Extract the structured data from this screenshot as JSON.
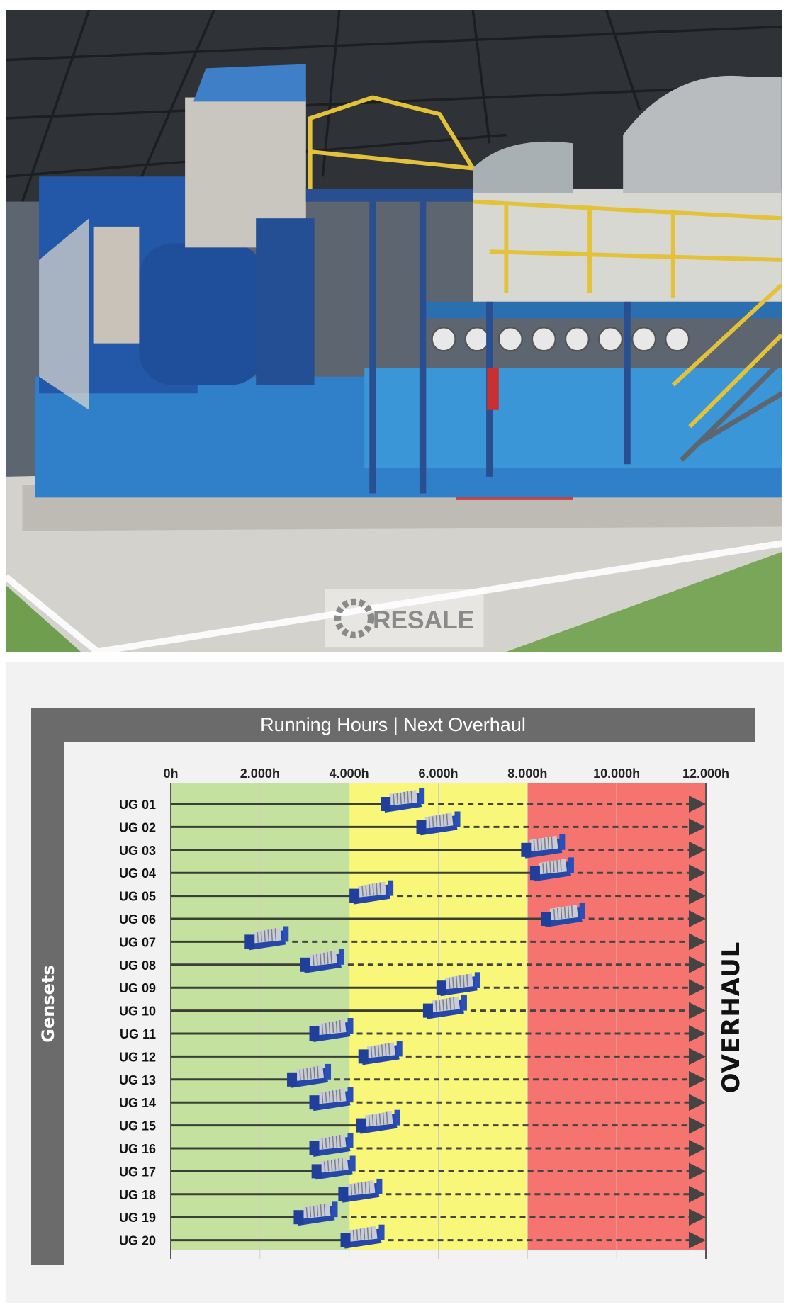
{
  "photo": {
    "watermark": "RESALE",
    "description_colors": {
      "engine_blue": "#2f7fc9",
      "railing_yellow": "#e3c23a",
      "floor": "#d4d2cc",
      "floor_green": "#6f9e4e"
    }
  },
  "chart_data": {
    "type": "bar",
    "orientation": "horizontal",
    "title": "Running Hours | Next Overhaul",
    "ylabel": "Gensets",
    "right_label": "OVERHAUL",
    "xlim": [
      0,
      12000
    ],
    "x_tick_labels": [
      "0h",
      "2.000h",
      "4.000h",
      "6.000h",
      "8.000h",
      "10.000h",
      "12.000h"
    ],
    "x_ticks": [
      0,
      2000,
      4000,
      6000,
      8000,
      10000,
      12000
    ],
    "zones": [
      {
        "from": 0,
        "to": 4000,
        "color": "#c4e1a0"
      },
      {
        "from": 4000,
        "to": 8000,
        "color": "#f8f77a"
      },
      {
        "from": 8000,
        "to": 12000,
        "color": "#f5746f"
      }
    ],
    "grid": true,
    "marker": "genset-icon",
    "categories": [
      "UG 01",
      "UG 02",
      "UG 03",
      "UG 04",
      "UG 05",
      "UG 06",
      "UG 07",
      "UG 08",
      "UG 09",
      "UG 10",
      "UG 11",
      "UG 12",
      "UG 13",
      "UG 14",
      "UG 15",
      "UG 16",
      "UG 17",
      "UG 18",
      "UG 19",
      "UG 20"
    ],
    "values": [
      5200,
      6000,
      8350,
      8550,
      4500,
      8800,
      2150,
      3400,
      6450,
      6150,
      3600,
      4700,
      3100,
      3600,
      4650,
      3600,
      3650,
      4250,
      3250,
      4300
    ]
  }
}
